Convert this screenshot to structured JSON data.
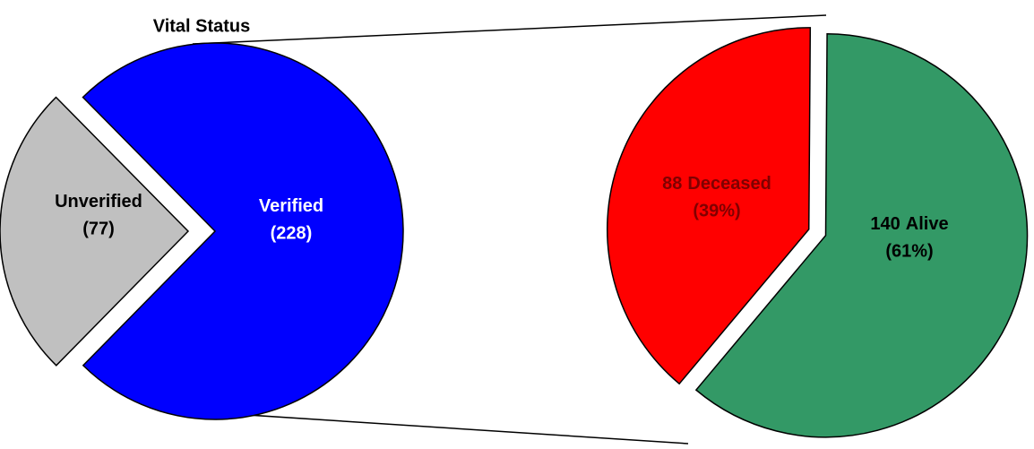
{
  "chart_data": [
    {
      "type": "pie",
      "title": "Vital Status",
      "categories": [
        "Unverified",
        "Verified"
      ],
      "values": [
        77,
        228
      ],
      "value_labels": [
        "(77)",
        "(228)"
      ],
      "colors": [
        "#c0c0c0",
        "#0000ff"
      ]
    },
    {
      "type": "pie",
      "categories": [
        "Deceased",
        "Alive"
      ],
      "counts": [
        88,
        140
      ],
      "values": [
        39,
        61
      ],
      "value_labels": [
        "(39%)",
        "(61%)"
      ],
      "colors": [
        "#ff0000",
        "#339966"
      ]
    }
  ]
}
